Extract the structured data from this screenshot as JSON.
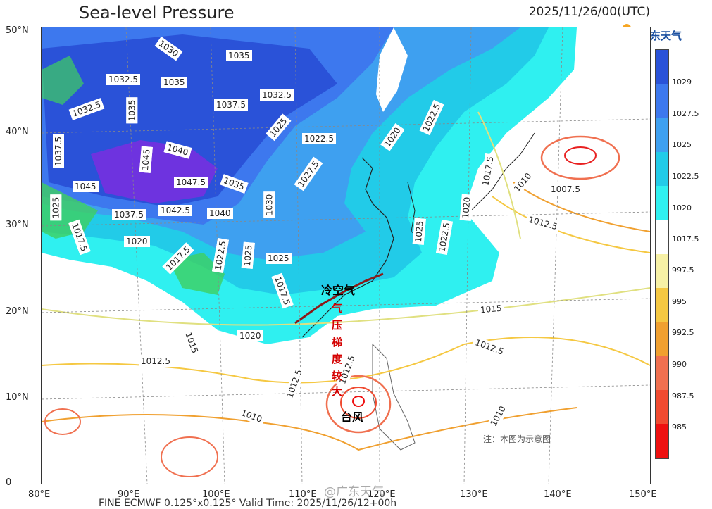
{
  "title": "Sea-level Pressure",
  "datetime": "2025/11/26/00(UTC)",
  "logo": {
    "text": "广东天气",
    "icon": "guangdong-weather-logo-icon"
  },
  "y_axis": [
    "50°N",
    "40°N",
    "30°N",
    "20°N",
    "10°N",
    "0"
  ],
  "x_axis": [
    "80°E",
    "90°E",
    "100°E",
    "110°E",
    "120°E",
    "130°E",
    "140°E",
    "150°E"
  ],
  "colorbar": {
    "labels": [
      "1029",
      "1027.5",
      "1025",
      "1022.5",
      "1020",
      "1017.5",
      "997.5",
      "995",
      "992.5",
      "990",
      "987.5",
      "985"
    ],
    "colors": [
      "#2a52d8",
      "#3d78ee",
      "#3ea0f0",
      "#22cbe8",
      "#2ff0f0",
      "#ffffff",
      "#f7f1a6",
      "#f5c842",
      "#f0a030",
      "#f07050",
      "#f04a30",
      "#ee1010"
    ]
  },
  "contour_labels": [
    {
      "t": "1030"
    },
    {
      "t": "1035"
    },
    {
      "t": "1032.5"
    },
    {
      "t": "1035"
    },
    {
      "t": "1032.5"
    },
    {
      "t": "1035"
    },
    {
      "t": "1037.5"
    },
    {
      "t": "1032.5"
    },
    {
      "t": "1025"
    },
    {
      "t": "1022.5"
    },
    {
      "t": "1020"
    },
    {
      "t": "1022.5"
    },
    {
      "t": "1037.5"
    },
    {
      "t": "1045"
    },
    {
      "t": "1040"
    },
    {
      "t": "1045"
    },
    {
      "t": "1047.5"
    },
    {
      "t": "1035"
    },
    {
      "t": "1027.5"
    },
    {
      "t": "1017.5"
    },
    {
      "t": "1010"
    },
    {
      "t": "1007.5"
    },
    {
      "t": "1025"
    },
    {
      "t": "1037.5"
    },
    {
      "t": "1042.5"
    },
    {
      "t": "1040"
    },
    {
      "t": "1030"
    },
    {
      "t": "1020"
    },
    {
      "t": "1012.5"
    },
    {
      "t": "1017.5"
    },
    {
      "t": "1020"
    },
    {
      "t": "1017.5"
    },
    {
      "t": "1022.5"
    },
    {
      "t": "1025"
    },
    {
      "t": "1025"
    },
    {
      "t": "1022.5"
    },
    {
      "t": "1025"
    },
    {
      "t": "1015"
    },
    {
      "t": "1015"
    },
    {
      "t": "1020"
    },
    {
      "t": "1017.5"
    },
    {
      "t": "1012.5"
    },
    {
      "t": "1012.5"
    },
    {
      "t": "1012.5"
    },
    {
      "t": "1012.5"
    },
    {
      "t": "1010"
    },
    {
      "t": "1010"
    }
  ],
  "annotations": {
    "cold_air": "冷空气",
    "gradient": [
      "气",
      "压",
      "梯",
      "度",
      "较",
      "大"
    ],
    "typhoon": "台风"
  },
  "note": "注：本图为示意图",
  "watermark": "@广东天气",
  "bottom_text": "FINE ECMWF 0.125°x0.125°   Valid Time: 2025/11/26/12+00h"
}
